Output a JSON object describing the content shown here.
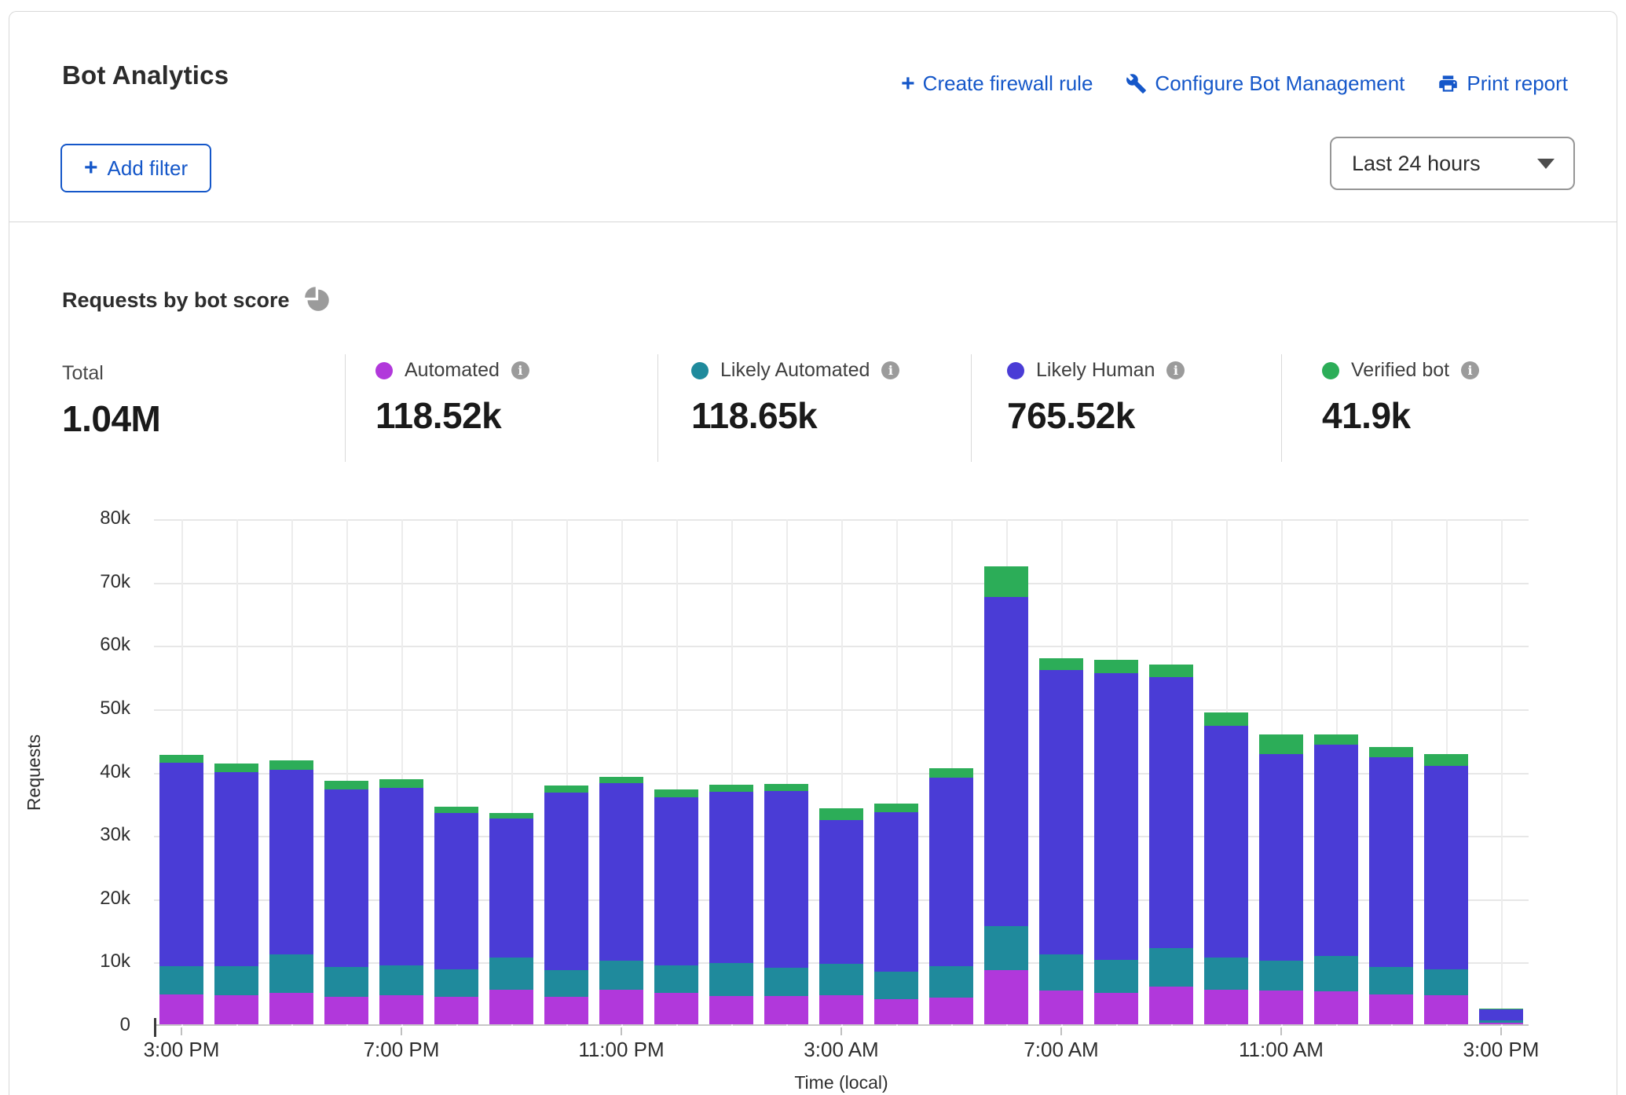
{
  "header": {
    "title": "Bot Analytics",
    "actions": [
      {
        "label": "Create firewall rule",
        "icon": "plus-icon"
      },
      {
        "label": "Configure Bot Management",
        "icon": "wrench-icon"
      },
      {
        "label": "Print report",
        "icon": "printer-icon"
      }
    ],
    "add_filter_label": "Add filter",
    "time_range": "Last 24 hours",
    "link_color": "#1557C9"
  },
  "section": {
    "title": "Requests by bot score",
    "icon": "pie-chart-icon"
  },
  "stats": {
    "total": {
      "label": "Total",
      "value": "1.04M"
    },
    "series": [
      {
        "label": "Automated",
        "value": "118.52k",
        "color": "#B138DB"
      },
      {
        "label": "Likely Automated",
        "value": "118.65k",
        "color": "#1F8A9C"
      },
      {
        "label": "Likely Human",
        "value": "765.52k",
        "color": "#4A3CD6"
      },
      {
        "label": "Verified bot",
        "value": "41.9k",
        "color": "#2CAD58"
      }
    ]
  },
  "chart_data": {
    "type": "bar",
    "stacked": true,
    "title": "Requests by bot score",
    "xlabel": "Time (local)",
    "ylabel": "Requests",
    "unit": "thousands of requests",
    "ylim_k": [
      0,
      80
    ],
    "grid": true,
    "y_ticks": [
      "0",
      "10k",
      "20k",
      "30k",
      "40k",
      "50k",
      "60k",
      "70k",
      "80k"
    ],
    "x_tick_labels": [
      "3:00 PM",
      "7:00 PM",
      "11:00 PM",
      "3:00 AM",
      "7:00 AM",
      "11:00 AM",
      "3:00 PM"
    ],
    "x_tick_indices": [
      0,
      4,
      8,
      12,
      16,
      20,
      24
    ],
    "categories": [
      "3:00 PM",
      "4:00 PM",
      "5:00 PM",
      "6:00 PM",
      "7:00 PM",
      "8:00 PM",
      "9:00 PM",
      "10:00 PM",
      "11:00 PM",
      "12:00 AM",
      "1:00 AM",
      "2:00 AM",
      "3:00 AM",
      "4:00 AM",
      "5:00 AM",
      "6:00 AM",
      "7:00 AM",
      "8:00 AM",
      "9:00 AM",
      "10:00 AM",
      "11:00 AM",
      "12:00 PM",
      "1:00 PM",
      "2:00 PM",
      "3:00 PM"
    ],
    "series": [
      {
        "name": "Automated",
        "color": "#B138DB",
        "values_k": [
          4.7,
          4.6,
          5.0,
          4.4,
          4.6,
          4.3,
          5.5,
          4.3,
          5.5,
          5.0,
          4.5,
          4.5,
          4.6,
          4.0,
          4.2,
          8.6,
          5.3,
          5.0,
          6.0,
          5.5,
          5.3,
          5.2,
          4.7,
          4.6,
          0.3
        ]
      },
      {
        "name": "Likely Automated",
        "color": "#1F8A9C",
        "values_k": [
          4.5,
          4.6,
          6.0,
          4.6,
          4.7,
          4.4,
          5.1,
          4.3,
          4.5,
          4.3,
          5.2,
          4.4,
          5.0,
          4.3,
          5.0,
          6.9,
          5.7,
          5.2,
          6.0,
          5.0,
          4.7,
          5.6,
          4.3,
          4.1,
          0.3
        ]
      },
      {
        "name": "Likely Human",
        "color": "#4A3CD6",
        "values_k": [
          32.1,
          30.6,
          29.2,
          28.1,
          28.0,
          24.7,
          21.9,
          28.0,
          28.1,
          26.6,
          27.0,
          28.0,
          22.7,
          25.2,
          29.7,
          52.0,
          45.0,
          45.3,
          42.8,
          36.6,
          32.7,
          33.4,
          33.2,
          32.1,
          1.8
        ]
      },
      {
        "name": "Verified bot",
        "color": "#2CAD58",
        "values_k": [
          1.3,
          1.4,
          1.5,
          1.3,
          1.4,
          1.0,
          0.9,
          1.1,
          1.0,
          1.2,
          1.1,
          1.0,
          1.8,
          1.3,
          1.5,
          4.8,
          1.8,
          2.1,
          2.0,
          2.2,
          3.1,
          1.6,
          1.55,
          1.9,
          0.05
        ]
      }
    ]
  }
}
